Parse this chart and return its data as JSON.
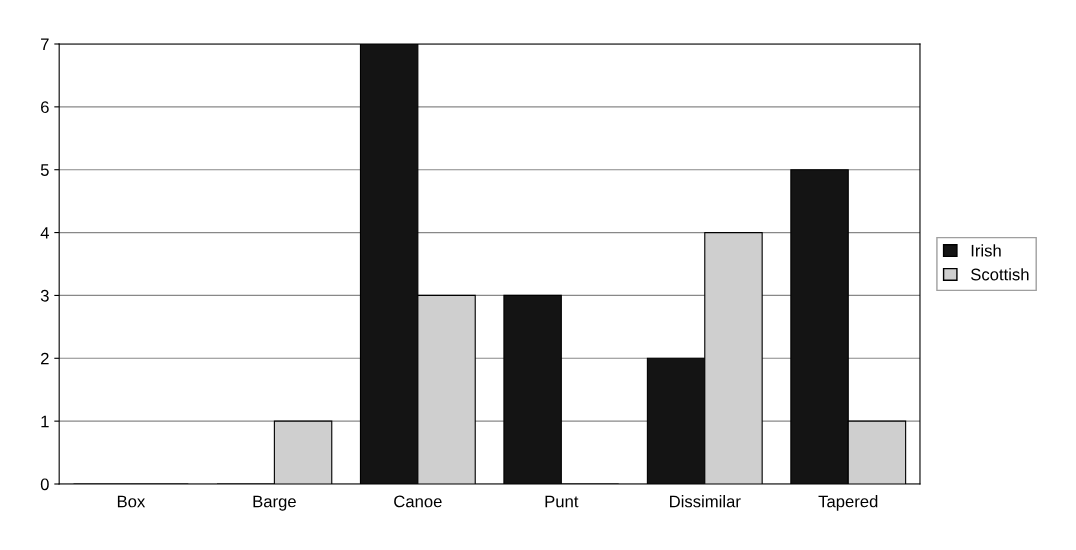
{
  "chart_data": {
    "type": "bar",
    "categories": [
      "Box",
      "Barge",
      "Canoe",
      "Punt",
      "Dissimilar",
      "Tapered"
    ],
    "series": [
      {
        "name": "Irish",
        "color": "#141414",
        "values": [
          0,
          0,
          7,
          3,
          2,
          5
        ]
      },
      {
        "name": "Scottish",
        "color": "#cfcfcf",
        "values": [
          0,
          1,
          3,
          0,
          4,
          1
        ]
      }
    ],
    "ylim": [
      0,
      7
    ],
    "yticks": [
      0,
      1,
      2,
      3,
      4,
      5,
      6,
      7
    ],
    "grid": "y",
    "legend": "right"
  }
}
